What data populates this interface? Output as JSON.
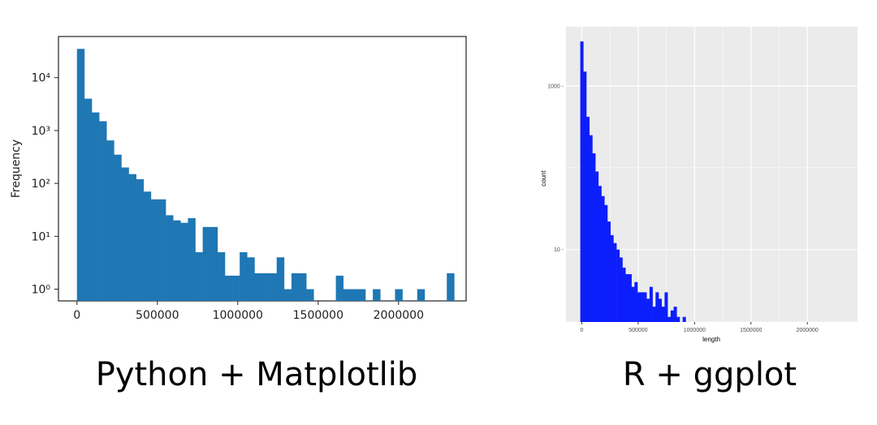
{
  "captions": {
    "left": "Python + Matplotlib",
    "right": "R + ggplot"
  },
  "chart_data": [
    {
      "type": "bar",
      "library": "matplotlib",
      "bar_color": "#1f77b4",
      "ylabel": "Frequency",
      "xlabel": "",
      "yscale": "log",
      "xlim": [
        -115000,
        2420000
      ],
      "ylim": [
        0.6,
        60000
      ],
      "x_ticks": [
        0,
        500000,
        1000000,
        1500000,
        2000000
      ],
      "x_tick_labels": [
        "0",
        "500000",
        "1000000",
        "1500000",
        "2000000"
      ],
      "y_ticks": [
        1,
        10,
        100,
        1000,
        10000
      ],
      "y_tick_labels": [
        "10⁰",
        "10¹",
        "10²",
        "10³",
        "10⁴"
      ],
      "bin_width": 46000,
      "bin_start": 0,
      "values": [
        35000,
        4000,
        2200,
        1500,
        650,
        350,
        200,
        150,
        120,
        70,
        50,
        50,
        25,
        20,
        18,
        22,
        5,
        15,
        15,
        5,
        1.8,
        1.8,
        5,
        4,
        2,
        2,
        2,
        4,
        1,
        2,
        2,
        1,
        0,
        0,
        0,
        1.8,
        1,
        1,
        1,
        0,
        1,
        0,
        0,
        1,
        0,
        0,
        1,
        0,
        0,
        0,
        2
      ]
    },
    {
      "type": "bar",
      "library": "ggplot",
      "bar_color": "#0d1efc",
      "panel_bg": "#ebebeb",
      "xlabel": "length",
      "ylabel": "count",
      "yscale": "log",
      "xlim": [
        -140000,
        2445000
      ],
      "ylim": [
        1.3,
        5300
      ],
      "x_ticks": [
        0,
        500000,
        1000000,
        1500000,
        2000000
      ],
      "x_tick_labels": [
        "0",
        "500000",
        "1000000",
        "1500000",
        "2000000"
      ],
      "y_ticks": [
        10,
        1000
      ],
      "y_tick_labels": [
        "10 -",
        "1000 -"
      ],
      "bin_width": 26700,
      "bin_start": -13350,
      "values": [
        3500,
        1500,
        420,
        250,
        150,
        90,
        60,
        45,
        35,
        22,
        15,
        12,
        10,
        8,
        6,
        5,
        5,
        3.5,
        4,
        3,
        3,
        3,
        2.5,
        3.5,
        2,
        3,
        2.5,
        2,
        3,
        1.5,
        1.8,
        2,
        1.5,
        1.3,
        1.5,
        1,
        1.2,
        1.2,
        1,
        1,
        1,
        0.5,
        0.5,
        0.5,
        0.5,
        0.5,
        0.5,
        0.5,
        0.5,
        0.5,
        0.5,
        0.5,
        0.5,
        0.5,
        0.5,
        0.5,
        0.5,
        0.5,
        0.5,
        0.5,
        0.5,
        0.5,
        0.5,
        0.5,
        0.5,
        0.5,
        0.5,
        0.5,
        0.5,
        0.5,
        0.5,
        0.5,
        0.5,
        0.5,
        0.5,
        0.5,
        0.5,
        0.5,
        0.5,
        0.5,
        0.5,
        0.5,
        0.5,
        0.5,
        0.5,
        0.5,
        0.5
      ]
    }
  ]
}
